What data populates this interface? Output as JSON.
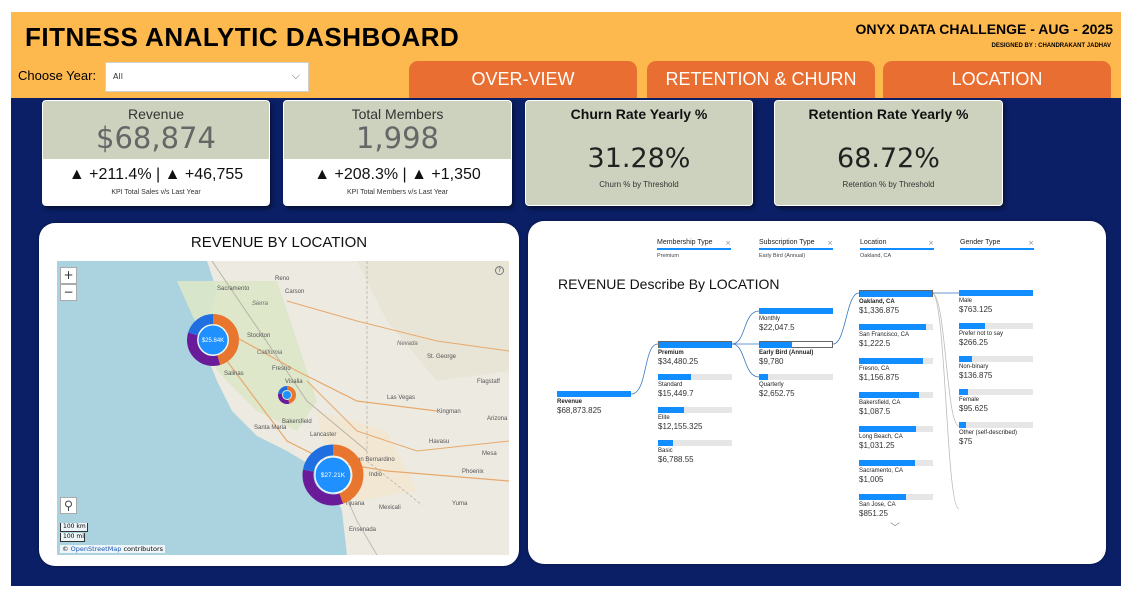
{
  "header": {
    "title": "FITNESS ANALYTIC DASHBOARD",
    "challenge": "ONYX DATA CHALLENGE - AUG - 2025",
    "designer": "DESIGNED BY : CHANDRAKANT JADHAV",
    "year_label": "Choose Year:",
    "year_value": "All",
    "nav": [
      "OVER-VIEW",
      "RETENTION & CHURN",
      "LOCATION"
    ]
  },
  "kpis": {
    "revenue": {
      "title": "Revenue",
      "value": "$68,874",
      "delta": "▲ +211.4% | ▲ +46,755",
      "note": "KPI Total Sales v/s Last Year"
    },
    "members": {
      "title": "Total Members",
      "value": "1,998",
      "delta": "▲ +208.3% | ▲ +1,350",
      "note": "KPI Total Members v/s Last Year"
    },
    "churn": {
      "title": "Churn Rate Yearly %",
      "value": "31.28%",
      "sub": "Churn % by Threshold"
    },
    "retention": {
      "title": "Retention Rate Yearly %",
      "value": "68.72%",
      "sub": "Retention % by Threshold"
    }
  },
  "map": {
    "title": "REVENUE BY LOCATION",
    "zoom_in": "+",
    "zoom_out": "−",
    "scale_km": "100 km",
    "scale_mi": "100 mi",
    "attribution_symbol": "©",
    "attribution_link": "OpenStreetMap",
    "attribution_rest": " contributors",
    "bubble_north": "$25.84K",
    "bubble_south": "$27.21K",
    "labels": {
      "sacramento": "Sacramento",
      "reno": "Reno",
      "stockton": "Stockton",
      "california": "California",
      "fresno": "Fresno",
      "salinas": "Salinas",
      "visalia": "Visalia",
      "bakersfield": "Bakersfield",
      "santa_maria": "Santa Maria",
      "lancaster": "Lancaster",
      "las_vegas": "Las Vegas",
      "st_george": "St. George",
      "nevada": "Nevada",
      "san_bernardino": "San Bernardino",
      "indio": "Indio",
      "mexicali": "Mexicali",
      "tijuana": "Tijuana",
      "ensenada": "Ensenada",
      "phoenix": "Phoenix",
      "flagstaff": "Flagstaff",
      "kingman": "Kingman",
      "havasu": "Havasu",
      "yuma": "Yuma",
      "sierra": "Sierra",
      "carson": "Carson",
      "dry": "Dry",
      "arizona": "Arizona",
      "mesa": "Mesa",
      "hum": "Hum",
      "ely": "Ely",
      "san": "San",
      "baja": "Baja"
    },
    "colors": {
      "seg_blue": "#1F6FE0",
      "seg_orange": "#E8762E",
      "seg_purple": "#6A1B9A",
      "seg_center": "#1E90FF"
    }
  },
  "tree": {
    "title": "REVENUE Describe By LOCATION",
    "levels": [
      {
        "name": "Membership Type",
        "value": "Premium"
      },
      {
        "name": "Subscription Type",
        "value": "Early Bird (Annual)"
      },
      {
        "name": "Location",
        "value": "Oakland, CA"
      },
      {
        "name": "Gender Type",
        "value": ""
      }
    ],
    "close_glyph": "×",
    "root": {
      "label": "Revenue",
      "value": "$68,873.825"
    },
    "membership": [
      {
        "label": "Premium",
        "value": "$34,480.25",
        "frac": 1.0
      },
      {
        "label": "Standard",
        "value": "$15,449.7",
        "frac": 0.45
      },
      {
        "label": "Elite",
        "value": "$12,155.325",
        "frac": 0.35
      },
      {
        "label": "Basic",
        "value": "$6,788.55",
        "frac": 0.2
      }
    ],
    "subscription": [
      {
        "label": "Monthly",
        "value": "$22,047.5",
        "frac": 1.0
      },
      {
        "label": "Early Bird (Annual)",
        "value": "$9,780",
        "frac": 0.44
      },
      {
        "label": "Quarterly",
        "value": "$2,652.75",
        "frac": 0.12
      }
    ],
    "location": [
      {
        "label": "Oakland, CA",
        "value": "$1,336.875",
        "frac": 1.0
      },
      {
        "label": "San Francisco, CA",
        "value": "$1,222.5",
        "frac": 0.91
      },
      {
        "label": "Fresno, CA",
        "value": "$1,156.875",
        "frac": 0.86
      },
      {
        "label": "Bakersfield, CA",
        "value": "$1,087.5",
        "frac": 0.81
      },
      {
        "label": "Long Beach, CA",
        "value": "$1,031.25",
        "frac": 0.77
      },
      {
        "label": "Sacramento, CA",
        "value": "$1,005",
        "frac": 0.75
      },
      {
        "label": "San Jose, CA",
        "value": "$851.25",
        "frac": 0.64
      }
    ],
    "gender": [
      {
        "label": "Male",
        "value": "$763.125",
        "frac": 1.0
      },
      {
        "label": "Prefer not to say",
        "value": "$266.25",
        "frac": 0.35
      },
      {
        "label": "Non-binary",
        "value": "$136.875",
        "frac": 0.18
      },
      {
        "label": "Female",
        "value": "$95.625",
        "frac": 0.125
      },
      {
        "label": "Other (self-described)",
        "value": "$75",
        "frac": 0.1
      }
    ],
    "more_glyph": "﹀"
  }
}
